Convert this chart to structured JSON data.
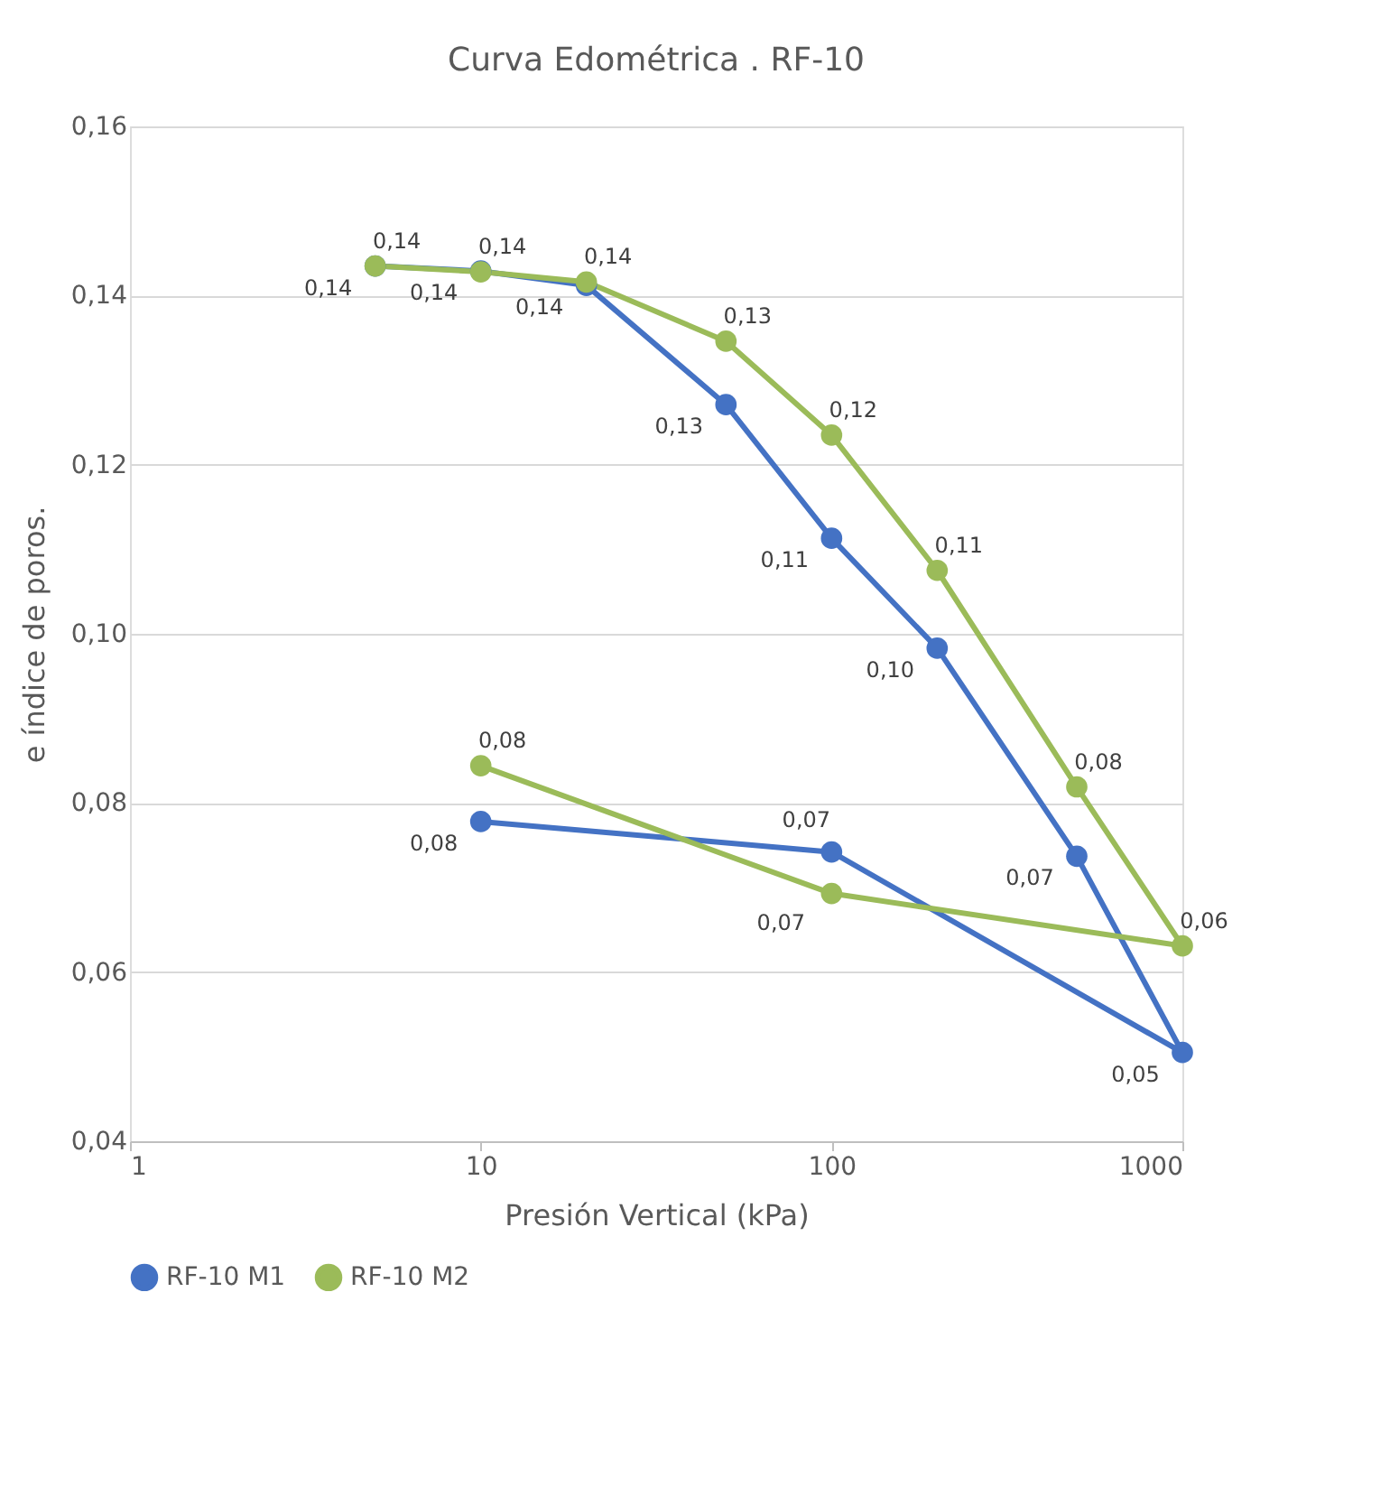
{
  "chart_data": {
    "type": "line",
    "title": "Curva Edométrica . RF-10",
    "xlabel": "Presión Vertical (kPa)",
    "ylabel": "e índice de poros.",
    "log": "x",
    "xlim": [
      1,
      1000
    ],
    "xticks": [
      1,
      10,
      100,
      1000
    ],
    "ylim": [
      0.04,
      0.16
    ],
    "yticks": [
      {
        "value": 0.04,
        "label": "0,04"
      },
      {
        "value": 0.06,
        "label": "0,06"
      },
      {
        "value": 0.08,
        "label": "0,08"
      },
      {
        "value": 0.1,
        "label": "0,10"
      },
      {
        "value": 0.12,
        "label": "0,12"
      },
      {
        "value": 0.14,
        "label": "0,14"
      },
      {
        "value": 0.16,
        "label": "0,16"
      }
    ],
    "grid": "y",
    "legend": "bottom",
    "marker": "circle",
    "line_style": "solid",
    "x": [
      5,
      10,
      20,
      50,
      100,
      200,
      500,
      1000,
      100,
      10
    ],
    "series": [
      {
        "name": "RF-10 M1",
        "color": "#4472c4",
        "values": [
          0.1435,
          0.1429,
          0.1412,
          0.1271,
          0.1113,
          0.0983,
          0.0737,
          0.0505,
          0.0742,
          0.0778
        ],
        "value_labels": [
          "0,14",
          "0,14",
          "0,14",
          "0,13",
          "0,11",
          "0,10",
          "0,07",
          "0,05",
          "0,07",
          "0,08"
        ]
      },
      {
        "name": "RF-10 M2",
        "color": "#9bbb59",
        "values": [
          0.1435,
          0.1428,
          0.1416,
          0.1346,
          0.1235,
          0.1075,
          0.0819,
          0.0631,
          0.0693,
          0.0844
        ],
        "value_labels": [
          "0,14",
          "0,14",
          "0,14",
          "0,13",
          "0,12",
          "0,11",
          "0,08",
          "0,06",
          "0,07",
          "0,08"
        ]
      }
    ]
  }
}
